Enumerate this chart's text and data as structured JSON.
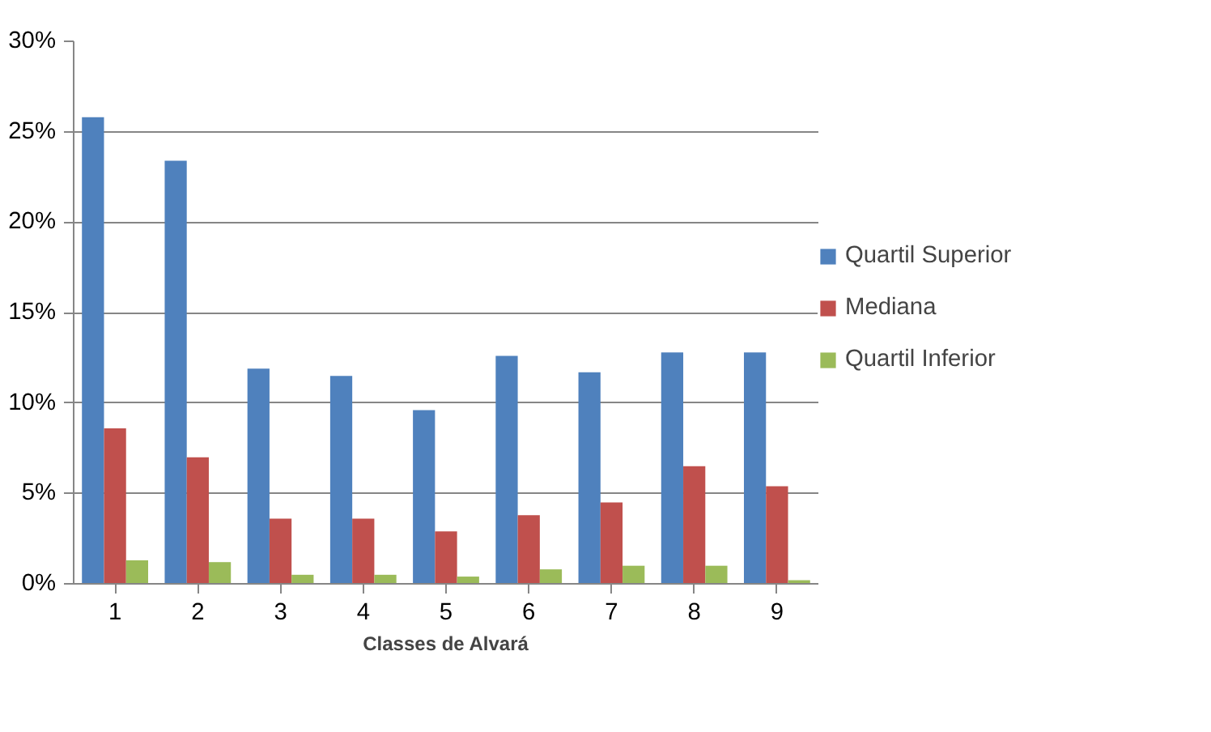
{
  "chart_data": {
    "type": "bar",
    "xlabel": "Classes de Alvará",
    "categories": [
      "1",
      "2",
      "3",
      "4",
      "5",
      "6",
      "7",
      "8",
      "9"
    ],
    "series": [
      {
        "name": "Quartil Superior",
        "color": "#4f81bd",
        "values": [
          25.8,
          23.4,
          11.9,
          11.5,
          9.6,
          12.6,
          11.7,
          12.8,
          12.8
        ]
      },
      {
        "name": "Mediana",
        "color": "#c0504d",
        "values": [
          8.6,
          7.0,
          3.6,
          3.6,
          2.9,
          3.8,
          4.5,
          6.5,
          5.4
        ]
      },
      {
        "name": "Quartil Inferior",
        "color": "#9bbb59",
        "values": [
          1.3,
          1.2,
          0.5,
          0.5,
          0.4,
          0.8,
          1.0,
          1.0,
          0.2
        ]
      }
    ],
    "ylim": [
      0,
      30
    ],
    "yticks": [
      {
        "value": 0,
        "label": "0%"
      },
      {
        "value": 5,
        "label": "5%"
      },
      {
        "value": 10,
        "label": "10%"
      },
      {
        "value": 15,
        "label": "15%"
      },
      {
        "value": 20,
        "label": "20%"
      },
      {
        "value": 25,
        "label": "25%"
      },
      {
        "value": 30,
        "label": "30%"
      }
    ],
    "grid": "y",
    "legend": "right"
  }
}
